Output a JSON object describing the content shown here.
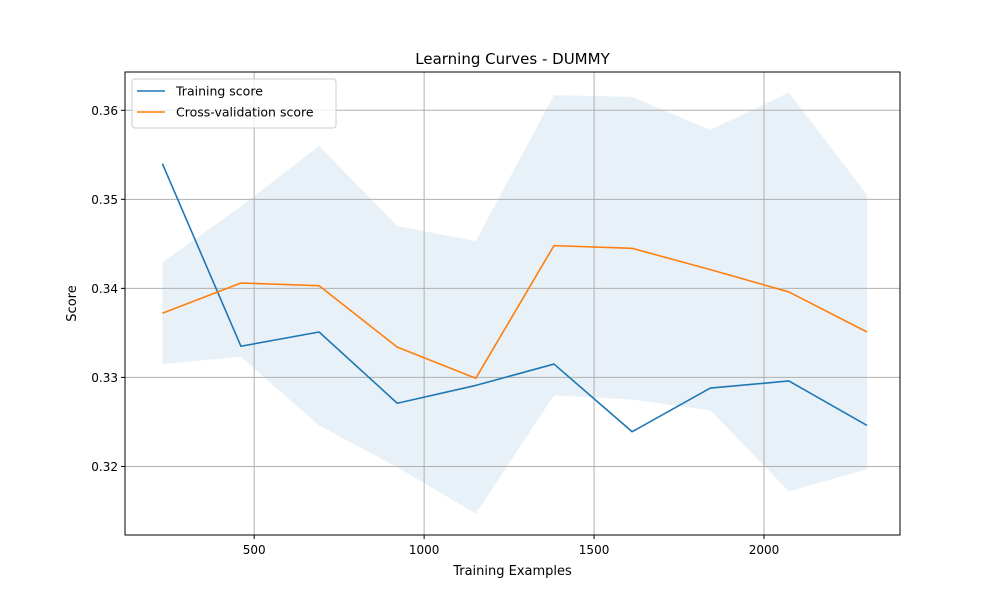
{
  "chart_data": {
    "type": "line",
    "title": "Learning Curves - DUMMY",
    "xlabel": "Training Examples",
    "ylabel": "Score",
    "xlim": [
      120,
      2400
    ],
    "ylim": [
      0.3123,
      0.3643
    ],
    "xticks": [
      500,
      1000,
      1500,
      2000
    ],
    "xtick_labels": [
      "500",
      "1000",
      "1500",
      "2000"
    ],
    "yticks": [
      0.32,
      0.33,
      0.34,
      0.35,
      0.36
    ],
    "ytick_labels": [
      "0.32",
      "0.33",
      "0.34",
      "0.35",
      "0.36"
    ],
    "grid": true,
    "legend_position": "upper-left",
    "x": [
      230,
      461,
      691,
      921,
      1152,
      1382,
      1612,
      1842,
      2073,
      2303
    ],
    "series": [
      {
        "name": "Training score",
        "color": "#1f77b4",
        "values": [
          0.354,
          0.3335,
          0.3351,
          0.3271,
          0.3291,
          0.3315,
          0.3239,
          0.3288,
          0.3296,
          0.3246
        ]
      },
      {
        "name": "Cross-validation score",
        "color": "#ff7f0e",
        "values": [
          0.3372,
          0.3406,
          0.3403,
          0.3334,
          0.3299,
          0.3448,
          0.3445,
          0.3421,
          0.3396,
          0.3351
        ]
      }
    ],
    "band": {
      "color": "#1f77b4",
      "opacity": 0.1,
      "upper": [
        0.3429,
        0.3492,
        0.356,
        0.347,
        0.3453,
        0.3617,
        0.3615,
        0.3578,
        0.362,
        0.3505
      ],
      "lower": [
        0.3315,
        0.3323,
        0.3246,
        0.3199,
        0.3147,
        0.328,
        0.3275,
        0.3263,
        0.3172,
        0.3197
      ]
    }
  }
}
